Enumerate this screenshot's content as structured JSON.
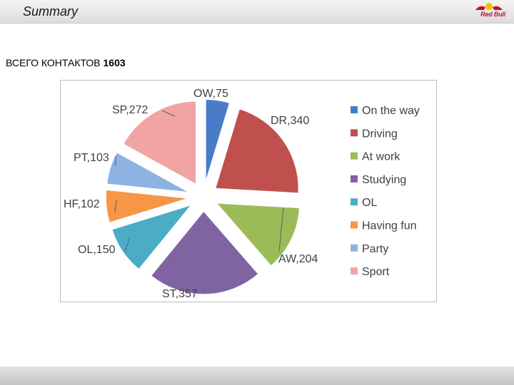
{
  "header": {
    "title": "Summary",
    "logo_text": "Red Bull"
  },
  "summary": {
    "label": "ВСЕГО КОНТАКТОВ",
    "total": "1603"
  },
  "chart_data": {
    "type": "pie",
    "title": "",
    "categories": [
      "OW",
      "DR",
      "AW",
      "ST",
      "OL",
      "HF",
      "PT",
      "SP"
    ],
    "values": [
      75,
      340,
      204,
      357,
      150,
      102,
      103,
      272
    ],
    "data_labels": [
      "OW,75",
      "DR,340",
      "AW,204",
      "ST,357",
      "OL,150",
      "HF,102",
      "PT,103",
      "SP,272"
    ],
    "legend": [
      "On the way",
      "Driving",
      "At work",
      "Studying",
      "OL",
      "Having fun",
      "Party",
      "Sport"
    ],
    "colors": [
      "#4a7bc8",
      "#c0504d",
      "#9bbb59",
      "#8064a2",
      "#4bacc6",
      "#f79646",
      "#8db3e2",
      "#f2a4a4"
    ],
    "legend_position": "right",
    "exploded": true
  }
}
